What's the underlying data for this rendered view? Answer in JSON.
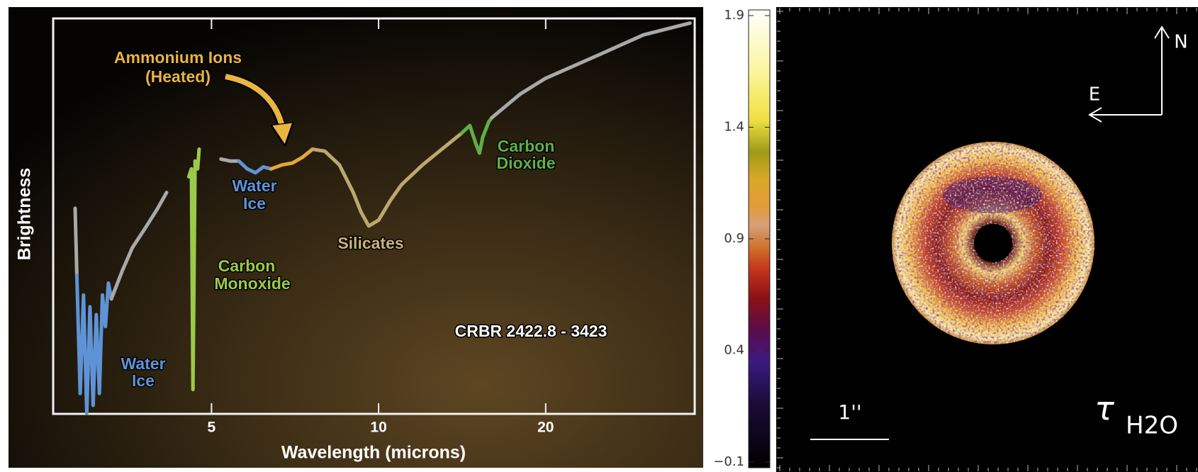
{
  "chart_data": [
    {
      "type": "line",
      "xlabel": "Wavelength (microns)",
      "ylabel": "Brightness",
      "xscale": "log",
      "xlim": [
        2.6,
        37
      ],
      "ylim": [
        0,
        1
      ],
      "xticks": [
        5,
        10,
        20
      ],
      "series": [
        {
          "color": "#a8a8a8",
          "x": [
            2.84,
            2.86
          ],
          "values": [
            0.52,
            0.35
          ]
        },
        {
          "color": "#5f93d6",
          "x": [
            2.86,
            2.9,
            2.94,
            2.98,
            3.02,
            3.06,
            3.1,
            3.14,
            3.18,
            3.22,
            3.26,
            3.3
          ],
          "values": [
            0.35,
            0.05,
            0.3,
            0.0,
            0.27,
            0.02,
            0.25,
            0.05,
            0.3,
            0.22,
            0.33,
            0.29
          ]
        },
        {
          "color": "#a8a8a8",
          "x": [
            3.3,
            3.45,
            3.6,
            3.8,
            4.0,
            4.15
          ],
          "values": [
            0.29,
            0.36,
            0.42,
            0.47,
            0.52,
            0.56
          ]
        },
        {
          "color": "#9bc94a",
          "x": [
            4.55,
            4.6,
            4.63,
            4.67,
            4.72,
            4.75
          ],
          "values": [
            0.6,
            0.62,
            0.06,
            0.64,
            0.62,
            0.67
          ]
        },
        {
          "color": "#a8a8a8",
          "x": [
            5.2,
            5.4,
            5.6
          ],
          "values": [
            0.645,
            0.64,
            0.64
          ]
        },
        {
          "color": "#5f93d6",
          "x": [
            5.6,
            5.8,
            6.0,
            6.2,
            6.4
          ],
          "values": [
            0.64,
            0.62,
            0.61,
            0.625,
            0.62
          ]
        },
        {
          "color": "#e3a83a",
          "x": [
            6.4,
            6.7,
            7.0,
            7.3,
            7.6
          ],
          "values": [
            0.62,
            0.63,
            0.635,
            0.65,
            0.67
          ]
        },
        {
          "color": "#bba86e",
          "x": [
            7.6,
            8.0,
            8.5,
            9.0,
            9.3,
            9.6,
            10.0,
            10.5,
            11,
            12,
            13,
            14.1
          ],
          "values": [
            0.67,
            0.665,
            0.63,
            0.56,
            0.51,
            0.475,
            0.49,
            0.54,
            0.58,
            0.63,
            0.67,
            0.71
          ]
        },
        {
          "color": "#5fb045",
          "x": [
            14.1,
            14.6,
            15.0,
            15.2,
            15.4,
            15.8,
            16.0
          ],
          "values": [
            0.71,
            0.73,
            0.68,
            0.66,
            0.7,
            0.74,
            0.75
          ]
        },
        {
          "color": "#a8a8a8",
          "x": [
            16,
            18,
            20,
            25,
            30,
            36.4
          ],
          "values": [
            0.75,
            0.81,
            0.85,
            0.91,
            0.96,
            0.99
          ]
        }
      ],
      "annotations": [
        {
          "lines": [
            "Ammonium Ions",
            "(Heated)"
          ],
          "color": "#e9b440"
        },
        {
          "lines": [
            "Water",
            "Ice"
          ],
          "color": "#5f93d6"
        },
        {
          "lines": [
            "Carbon",
            "Monoxide"
          ],
          "color": "#9bc94a"
        },
        {
          "lines": [
            "Silicates"
          ],
          "color": "#c9b27a"
        },
        {
          "lines": [
            "Carbon",
            "Dioxide"
          ],
          "color": "#5fb045"
        },
        {
          "lines": [
            "Water",
            "Ice"
          ],
          "color": "#5f93d6"
        },
        {
          "lines": [
            "CRBR 2422.8 - 3423"
          ],
          "color": "#ffffff"
        }
      ]
    },
    {
      "type": "colorbar",
      "ylim": [
        -0.1,
        1.9
      ],
      "yticks": [
        {
          "value": -0.1,
          "label": "−0.1"
        },
        0.4,
        0.9,
        1.4,
        1.9
      ]
    }
  ],
  "map_panel": {
    "north": "N",
    "east": "E",
    "scale_bar": "1''",
    "symbol": "τ",
    "species": "H2O"
  }
}
